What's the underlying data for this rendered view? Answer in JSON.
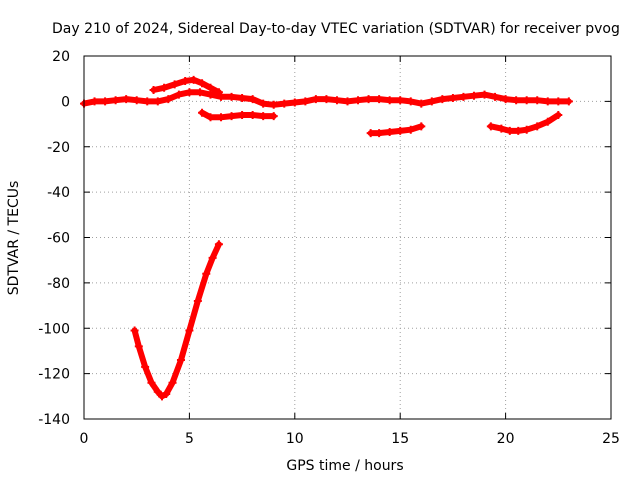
{
  "chart_data": {
    "type": "line",
    "title": "Day 210 of 2024, Sidereal Day-to-day VTEC variation (SDTVAR) for receiver pvog",
    "xlabel": "GPS time / hours",
    "ylabel": "SDTVAR / TECUs",
    "xlim": [
      0,
      25
    ],
    "ylim": [
      -140,
      20
    ],
    "xticks": [
      0,
      5,
      10,
      15,
      20,
      25
    ],
    "yticks": [
      -140,
      -120,
      -100,
      -80,
      -60,
      -40,
      -20,
      0,
      20
    ],
    "xtick_labels": [
      "0",
      "5",
      "10",
      "15",
      "20",
      "25"
    ],
    "ytick_labels": [
      "-140",
      "-120",
      "-100",
      "-80",
      "-60",
      "-40",
      "-20",
      "0",
      "20"
    ],
    "grid": true,
    "color": "#ff0000",
    "series": [
      {
        "name": "main-track",
        "x": [
          0.0,
          0.5,
          1.0,
          1.5,
          2.0,
          2.5,
          3.0,
          3.5,
          4.0,
          4.5,
          5.0,
          5.5,
          6.0,
          6.5,
          7.0,
          7.5,
          8.0,
          8.5,
          9.0,
          9.5,
          10.0,
          10.5,
          11.0,
          11.5,
          12.0,
          12.5,
          13.0,
          13.5,
          14.0,
          14.5,
          15.0,
          15.5,
          16.0,
          16.5,
          17.0,
          17.5,
          18.0,
          18.5,
          19.0,
          19.5,
          20.0,
          20.5,
          21.0,
          21.5,
          22.0,
          22.5,
          23.0
        ],
        "y": [
          -1,
          0,
          0,
          0.5,
          1,
          0.5,
          0,
          0,
          1,
          3,
          4,
          4,
          3,
          2,
          2,
          1.5,
          1,
          -1,
          -1.5,
          -1,
          -0.5,
          0,
          1,
          1,
          0.5,
          0,
          0.5,
          1,
          1,
          0.5,
          0.5,
          0,
          -1,
          0,
          1,
          1.5,
          2,
          2.5,
          3,
          2,
          1,
          0.5,
          0.5,
          0.5,
          0,
          0,
          0
        ]
      },
      {
        "name": "upper-arc",
        "x": [
          3.3,
          3.8,
          4.3,
          4.8,
          5.2,
          5.6,
          6.0,
          6.4
        ],
        "y": [
          5,
          6,
          7.5,
          9,
          9.5,
          8,
          6,
          4
        ]
      },
      {
        "name": "lower-arc",
        "x": [
          5.6,
          6.0,
          6.5,
          7.0,
          7.5,
          8.0,
          8.5,
          9.0
        ],
        "y": [
          -5,
          -7,
          -7,
          -6.5,
          -6,
          -6,
          -6.5,
          -6.5
        ]
      },
      {
        "name": "deep-dip",
        "x": [
          2.4,
          2.6,
          2.9,
          3.2,
          3.5,
          3.7,
          3.9,
          4.2,
          4.6,
          5.0,
          5.4,
          5.8,
          6.1,
          6.4
        ],
        "y": [
          -101,
          -108,
          -117,
          -124,
          -128,
          -130,
          -129,
          -124,
          -114,
          -101,
          -88,
          -76,
          -69,
          -63
        ]
      },
      {
        "name": "mid-arc",
        "x": [
          13.6,
          14.0,
          14.5,
          15.0,
          15.5,
          16.0
        ],
        "y": [
          -14,
          -14,
          -13.5,
          -13,
          -12.5,
          -11
        ]
      },
      {
        "name": "late-arc",
        "x": [
          19.3,
          19.8,
          20.2,
          20.6,
          21.0,
          21.5,
          22.0,
          22.5
        ],
        "y": [
          -11,
          -12,
          -13,
          -13,
          -12.5,
          -11,
          -9,
          -6
        ]
      }
    ]
  }
}
